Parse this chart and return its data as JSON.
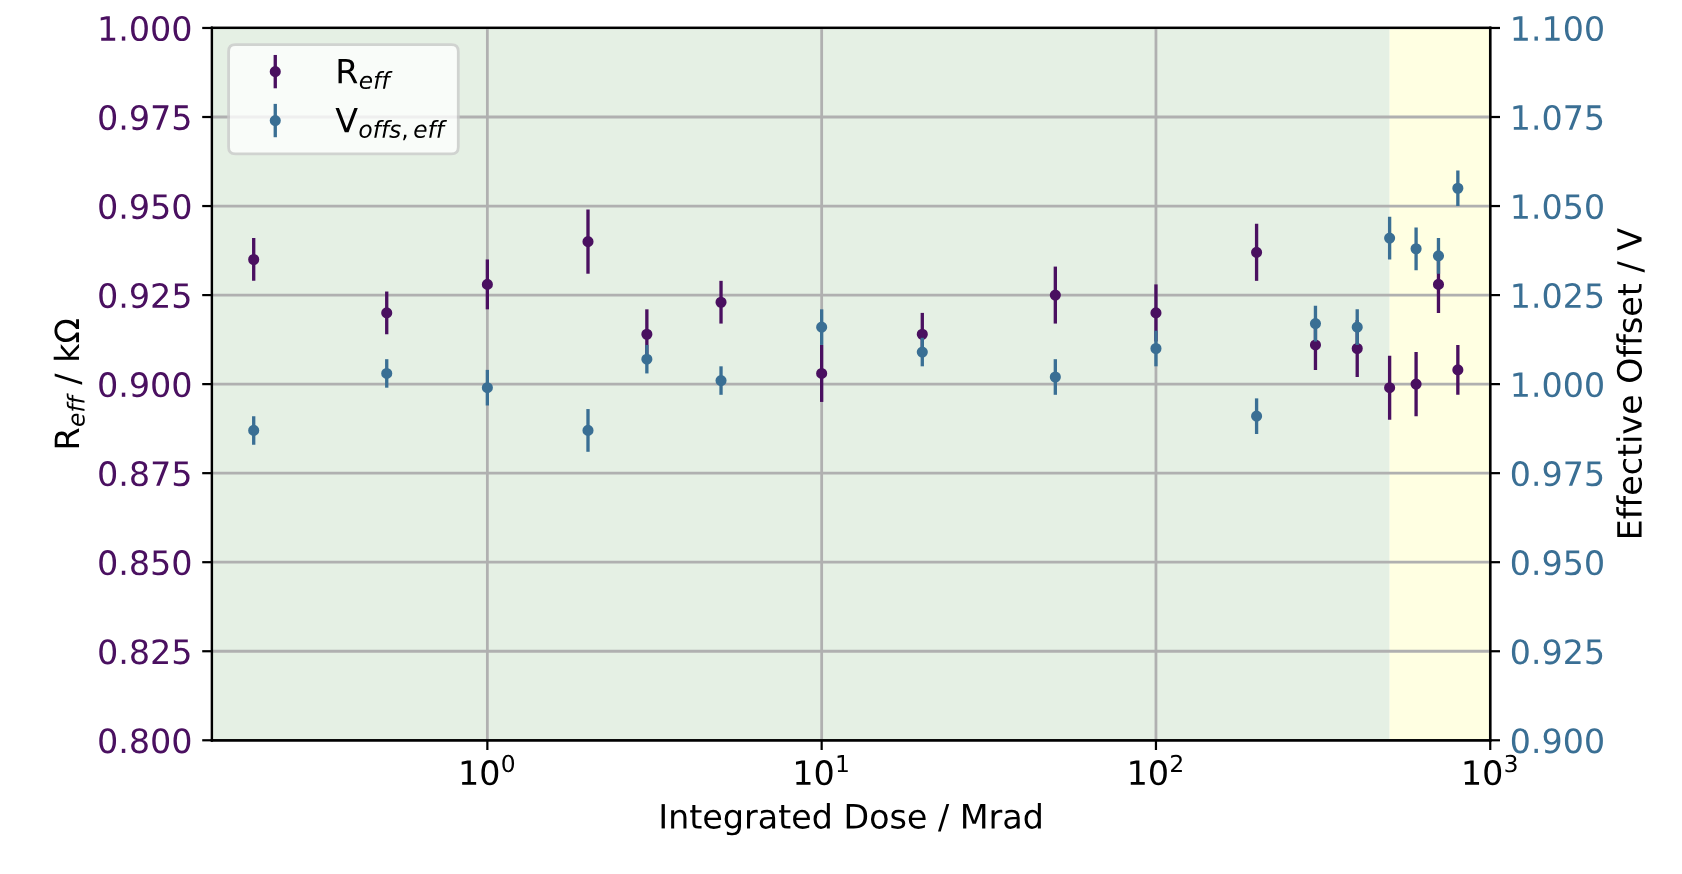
{
  "chart_data": {
    "type": "scatter",
    "xlabel": "Integrated Dose / Mrad",
    "ylabel": "R$_{eff}$ / kΩ",
    "y2label": "Effective Offset / V",
    "x": [
      0.2,
      0.5,
      1,
      2,
      3,
      5,
      10,
      20,
      50,
      100,
      200,
      300,
      400,
      500,
      600,
      700,
      800
    ],
    "series": [
      {
        "name": "R$_{eff}$",
        "color": "#4a1060",
        "values": [
          0.935,
          0.92,
          0.928,
          0.94,
          0.914,
          0.923,
          0.903,
          0.914,
          0.925,
          0.92,
          0.937,
          0.911,
          0.91,
          0.899,
          0.9,
          0.928,
          0.904
        ],
        "errors": [
          0.006,
          0.006,
          0.007,
          0.009,
          0.007,
          0.006,
          0.008,
          0.006,
          0.008,
          0.008,
          0.008,
          0.007,
          0.008,
          0.009,
          0.009,
          0.008,
          0.007
        ]
      },
      {
        "name": "V$_{offs,eff}$",
        "color": "#3a6f94",
        "axis": "y2",
        "values": [
          0.987,
          1.003,
          0.999,
          0.987,
          1.007,
          1.001,
          1.016,
          1.009,
          1.002,
          1.01,
          0.991,
          1.017,
          1.016,
          1.041,
          1.038,
          1.036,
          1.055
        ],
        "errors": [
          0.004,
          0.004,
          0.005,
          0.006,
          0.004,
          0.004,
          0.005,
          0.004,
          0.005,
          0.005,
          0.005,
          0.005,
          0.005,
          0.006,
          0.006,
          0.005,
          0.005
        ]
      }
    ],
    "log": "x",
    "xlim": [
      0.15,
      1000
    ],
    "xticks": [
      {
        "value": 1,
        "label": "10$^{0}$"
      },
      {
        "value": 10,
        "label": "10$^{1}$"
      },
      {
        "value": 100,
        "label": "10$^{2}$"
      },
      {
        "value": 1000,
        "label": "10$^{3}$"
      }
    ],
    "ylim": [
      0.8,
      1.0
    ],
    "yticks": [
      {
        "value": 0.8,
        "label": "0.800"
      },
      {
        "value": 0.825,
        "label": "0.825"
      },
      {
        "value": 0.85,
        "label": "0.850"
      },
      {
        "value": 0.875,
        "label": "0.875"
      },
      {
        "value": 0.9,
        "label": "0.900"
      },
      {
        "value": 0.925,
        "label": "0.925"
      },
      {
        "value": 0.95,
        "label": "0.950"
      },
      {
        "value": 0.975,
        "label": "0.975"
      },
      {
        "value": 1.0,
        "label": "1.000"
      }
    ],
    "y2lim": [
      0.9,
      1.1
    ],
    "y2ticks": [
      {
        "value": 0.9,
        "label": "0.900"
      },
      {
        "value": 0.925,
        "label": "0.925"
      },
      {
        "value": 0.95,
        "label": "0.950"
      },
      {
        "value": 0.975,
        "label": "0.975"
      },
      {
        "value": 1.0,
        "label": "1.000"
      },
      {
        "value": 1.025,
        "label": "1.025"
      },
      {
        "value": 1.05,
        "label": "1.050"
      },
      {
        "value": 1.075,
        "label": "1.075"
      },
      {
        "value": 1.1,
        "label": "1.100"
      }
    ],
    "bands": [
      {
        "axis": "x",
        "from": 0.15,
        "to": 500,
        "color": "#e5f0e4"
      },
      {
        "axis": "x",
        "from": 500,
        "to": 1000,
        "color": "#ffffe2"
      }
    ],
    "grid": true,
    "legend": "top left",
    "marker": "circle"
  }
}
